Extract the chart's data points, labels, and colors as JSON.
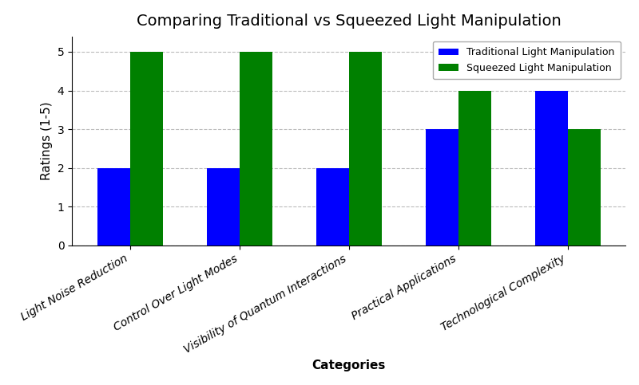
{
  "title": "Comparing Traditional vs Squeezed Light Manipulation",
  "xlabel": "Categories",
  "ylabel": "Ratings (1-5)",
  "categories": [
    "Light Noise Reduction",
    "Control Over Light Modes",
    "Visibility of Quantum Interactions",
    "Practical Applications",
    "Technological Complexity"
  ],
  "series": [
    {
      "label": "Traditional Light Manipulation",
      "values": [
        2,
        2,
        2,
        3,
        4
      ],
      "color": "blue"
    },
    {
      "label": "Squeezed Light Manipulation",
      "values": [
        5,
        5,
        5,
        4,
        3
      ],
      "color": "green"
    }
  ],
  "ylim": [
    0,
    5.4
  ],
  "yticks": [
    0,
    1,
    2,
    3,
    4,
    5
  ],
  "bar_width": 0.3,
  "background_color": "#ffffff",
  "grid_color": "#aaaaaa",
  "title_fontsize": 14,
  "axis_label_fontsize": 11,
  "tick_fontsize": 10,
  "legend_fontsize": 9,
  "xlabel_fontsize": 11
}
